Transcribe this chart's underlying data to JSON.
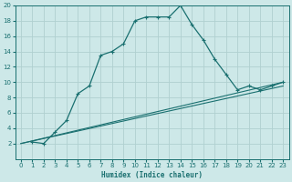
{
  "xlabel": "Humidex (Indice chaleur)",
  "xlim": [
    -0.5,
    23.5
  ],
  "ylim": [
    0,
    20
  ],
  "xticks": [
    0,
    1,
    2,
    3,
    4,
    5,
    6,
    7,
    8,
    9,
    10,
    11,
    12,
    13,
    14,
    15,
    16,
    17,
    18,
    19,
    20,
    21,
    22,
    23
  ],
  "yticks": [
    2,
    4,
    6,
    8,
    10,
    12,
    14,
    16,
    18,
    20
  ],
  "bg_color": "#cde8e8",
  "grid_color": "#b0d0d0",
  "line_color": "#1a7070",
  "curve1_x": [
    1,
    2,
    3,
    4,
    5,
    6,
    7,
    8,
    9,
    10,
    11,
    12,
    13,
    14,
    15,
    16,
    17,
    18,
    19,
    20,
    21,
    22,
    23
  ],
  "curve1_y": [
    2.2,
    2.0,
    3.5,
    5.0,
    8.5,
    9.5,
    13.5,
    14.0,
    15.0,
    18.0,
    18.5,
    18.5,
    18.5,
    20.0,
    17.5,
    15.5,
    13.0,
    11.0,
    9.0,
    9.5,
    9.0,
    9.5,
    10.0
  ],
  "curve2_x": [
    0,
    23
  ],
  "curve2_y": [
    2.0,
    9.5
  ],
  "curve3_x": [
    0,
    23
  ],
  "curve3_y": [
    2.0,
    10.0
  ]
}
